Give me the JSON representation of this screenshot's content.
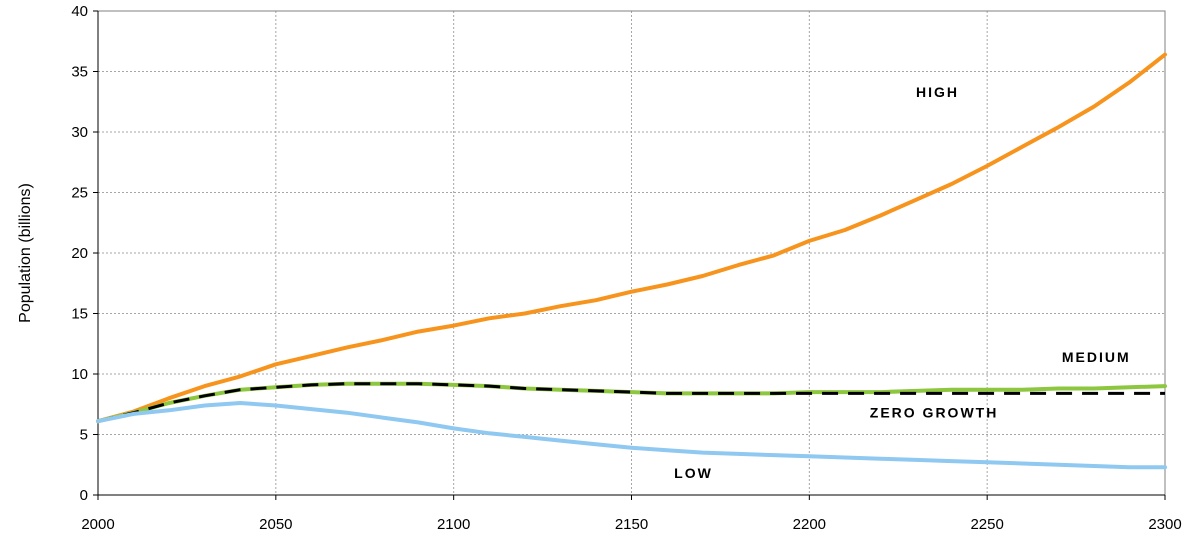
{
  "chart_data": {
    "type": "line",
    "title": "",
    "xlabel": "",
    "ylabel": "Population (billions)",
    "xlim": [
      2000,
      2300
    ],
    "ylim": [
      0,
      40
    ],
    "xticks": [
      2000,
      2050,
      2100,
      2150,
      2200,
      2250,
      2300
    ],
    "yticks": [
      0,
      5,
      10,
      15,
      20,
      25,
      30,
      35,
      40
    ],
    "grid": true,
    "series": [
      {
        "name": "HIGH",
        "color": "#F7941D",
        "dash": "solid",
        "x": [
          2000,
          2010,
          2020,
          2030,
          2040,
          2050,
          2060,
          2070,
          2080,
          2090,
          2100,
          2110,
          2120,
          2130,
          2140,
          2150,
          2160,
          2170,
          2180,
          2190,
          2200,
          2210,
          2220,
          2230,
          2240,
          2250,
          2260,
          2270,
          2280,
          2290,
          2300
        ],
        "y": [
          6.1,
          6.9,
          8.0,
          9.0,
          9.8,
          10.8,
          11.5,
          12.2,
          12.8,
          13.5,
          14.0,
          14.6,
          15.0,
          15.6,
          16.1,
          16.8,
          17.4,
          18.1,
          19.0,
          19.8,
          21.0,
          21.9,
          23.1,
          24.4,
          25.7,
          27.2,
          28.8,
          30.4,
          32.1,
          34.1,
          36.4
        ]
      },
      {
        "name": "MEDIUM",
        "color": "#8DC63F",
        "dash": "solid",
        "x": [
          2000,
          2010,
          2020,
          2030,
          2040,
          2050,
          2060,
          2070,
          2080,
          2090,
          2100,
          2110,
          2120,
          2130,
          2140,
          2150,
          2160,
          2170,
          2180,
          2190,
          2200,
          2210,
          2220,
          2230,
          2240,
          2250,
          2260,
          2270,
          2280,
          2290,
          2300
        ],
        "y": [
          6.1,
          6.8,
          7.6,
          8.2,
          8.7,
          8.9,
          9.1,
          9.2,
          9.2,
          9.2,
          9.1,
          9.0,
          8.8,
          8.7,
          8.6,
          8.5,
          8.4,
          8.4,
          8.4,
          8.4,
          8.5,
          8.5,
          8.5,
          8.6,
          8.7,
          8.7,
          8.7,
          8.8,
          8.8,
          8.9,
          9.0
        ]
      },
      {
        "name": "ZERO GROWTH",
        "color": "#000000",
        "dash": "dashed",
        "x": [
          2000,
          2010,
          2020,
          2030,
          2040,
          2050,
          2060,
          2070,
          2080,
          2090,
          2100,
          2110,
          2120,
          2130,
          2140,
          2150,
          2160,
          2170,
          2180,
          2190,
          2200,
          2210,
          2220,
          2230,
          2240,
          2250,
          2260,
          2270,
          2280,
          2290,
          2300
        ],
        "y": [
          6.1,
          6.8,
          7.6,
          8.2,
          8.7,
          8.9,
          9.1,
          9.2,
          9.2,
          9.2,
          9.1,
          9.0,
          8.8,
          8.7,
          8.6,
          8.5,
          8.4,
          8.4,
          8.4,
          8.4,
          8.4,
          8.4,
          8.4,
          8.4,
          8.4,
          8.4,
          8.4,
          8.4,
          8.4,
          8.4,
          8.4
        ]
      },
      {
        "name": "LOW",
        "color": "#8FC8F0",
        "dash": "solid",
        "x": [
          2000,
          2010,
          2020,
          2030,
          2040,
          2050,
          2060,
          2070,
          2080,
          2090,
          2100,
          2110,
          2120,
          2130,
          2140,
          2150,
          2160,
          2170,
          2180,
          2190,
          2200,
          2210,
          2220,
          2230,
          2240,
          2250,
          2260,
          2270,
          2280,
          2290,
          2300
        ],
        "y": [
          6.1,
          6.7,
          7.0,
          7.4,
          7.6,
          7.4,
          7.1,
          6.8,
          6.4,
          6.0,
          5.5,
          5.1,
          4.8,
          4.5,
          4.2,
          3.9,
          3.7,
          3.5,
          3.4,
          3.3,
          3.2,
          3.1,
          3.0,
          2.9,
          2.8,
          2.7,
          2.6,
          2.5,
          2.4,
          2.3,
          2.3
        ]
      }
    ],
    "annotations": [
      {
        "text": "HIGH",
        "x": 2230,
        "y": 32.9
      },
      {
        "text": "MEDIUM",
        "x": 2271,
        "y": 11.0
      },
      {
        "text": "ZERO GROWTH",
        "x": 2217,
        "y": 6.4
      },
      {
        "text": "LOW",
        "x": 2162,
        "y": 1.4
      }
    ]
  }
}
